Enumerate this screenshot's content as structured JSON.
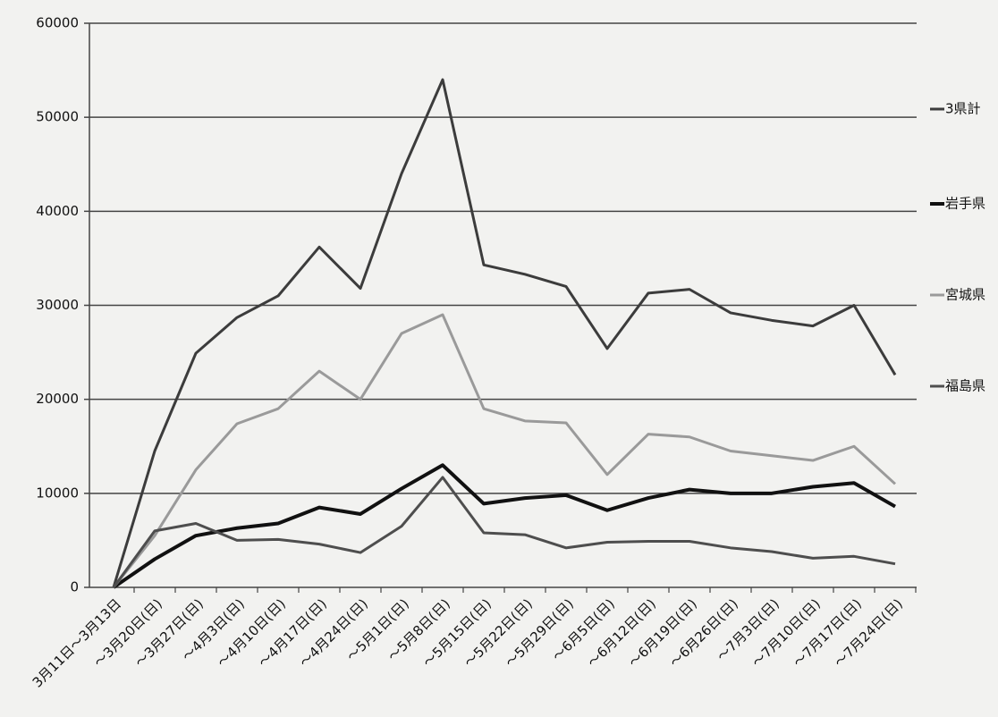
{
  "chart_data": {
    "type": "line",
    "categories": [
      "3月11日～3月13日",
      "～3月20日(日)",
      "～3月27日(日)",
      "～4月3日(日)",
      "～4月10日(日)",
      "～4月17日(日)",
      "～4月24日(日)",
      "～5月1日(日)",
      "～5月8日(日)",
      "～5月15日(日)",
      "～5月22日(日)",
      "～5月29日(日)",
      "～6月5日(日)",
      "～6月12日(日)",
      "～6月19日(日)",
      "～6月26日(日)",
      "～7月3日(日)",
      "～7月10日(日)",
      "～7月17日(日)",
      "～7月24日(日)"
    ],
    "series": [
      {
        "name": "3県計",
        "color": "#3c3c3c",
        "values": [
          0,
          14500,
          24900,
          28700,
          31000,
          36200,
          31800,
          44000,
          54000,
          34300,
          33300,
          32000,
          25400,
          31300,
          31700,
          29200,
          28400,
          27800,
          30000,
          22600
        ]
      },
      {
        "name": "岩手県",
        "color": "#111111",
        "values": [
          0,
          3000,
          5500,
          6300,
          6800,
          8500,
          7800,
          10500,
          13000,
          8900,
          9500,
          9800,
          8200,
          9500,
          10400,
          10000,
          10000,
          10700,
          11100,
          8600
        ]
      },
      {
        "name": "宮城県",
        "color": "#9a9a9a",
        "values": [
          0,
          5500,
          12500,
          17400,
          19000,
          23000,
          20000,
          27000,
          29000,
          19000,
          17700,
          17500,
          12000,
          16300,
          16000,
          14500,
          14000,
          13500,
          15000,
          11000
        ]
      },
      {
        "name": "福島県",
        "color": "#4e4e4e",
        "values": [
          0,
          6000,
          6800,
          5000,
          5100,
          4600,
          3700,
          6500,
          11700,
          5800,
          5600,
          4200,
          4800,
          4900,
          4900,
          4200,
          3800,
          3100,
          3300,
          2500
        ]
      }
    ],
    "ylim": [
      0,
      60000
    ],
    "yticks": [
      0,
      10000,
      20000,
      30000,
      40000,
      50000,
      60000
    ],
    "grid": true,
    "legend": "right"
  }
}
